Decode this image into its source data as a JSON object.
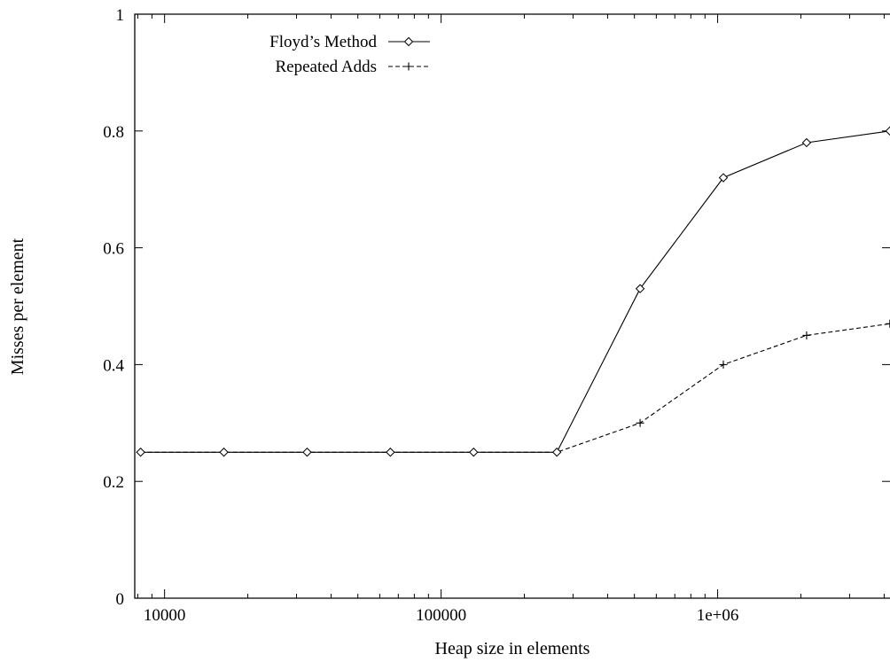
{
  "chart_data": {
    "type": "line",
    "title": "",
    "xlabel": "Heap size in elements",
    "ylabel": "Misses per element",
    "xscale": "log",
    "xlim": [
      7800,
      4200000
    ],
    "ylim": [
      0,
      1
    ],
    "x_ticks": [
      10000,
      100000,
      1000000
    ],
    "x_tick_labels": [
      "10000",
      "100000",
      "1e+06"
    ],
    "y_ticks": [
      0,
      0.2,
      0.4,
      0.6,
      0.8,
      1
    ],
    "y_tick_labels": [
      "0",
      "0.2",
      "0.4",
      "0.6",
      "0.8",
      "1"
    ],
    "grid": false,
    "legend_position": "top-left",
    "x": [
      8192,
      16384,
      32768,
      65536,
      131072,
      262144,
      524288,
      1048576,
      2097152,
      4194304
    ],
    "series": [
      {
        "name": "Floyd’s Method",
        "marker": "diamond",
        "line": "solid",
        "values": [
          0.25,
          0.25,
          0.25,
          0.25,
          0.25,
          0.25,
          0.53,
          0.72,
          0.78,
          0.8
        ]
      },
      {
        "name": "Repeated Adds",
        "marker": "plus",
        "line": "dashed",
        "values": [
          0.25,
          0.25,
          0.25,
          0.25,
          0.25,
          0.25,
          0.3,
          0.4,
          0.45,
          0.47
        ]
      }
    ]
  }
}
